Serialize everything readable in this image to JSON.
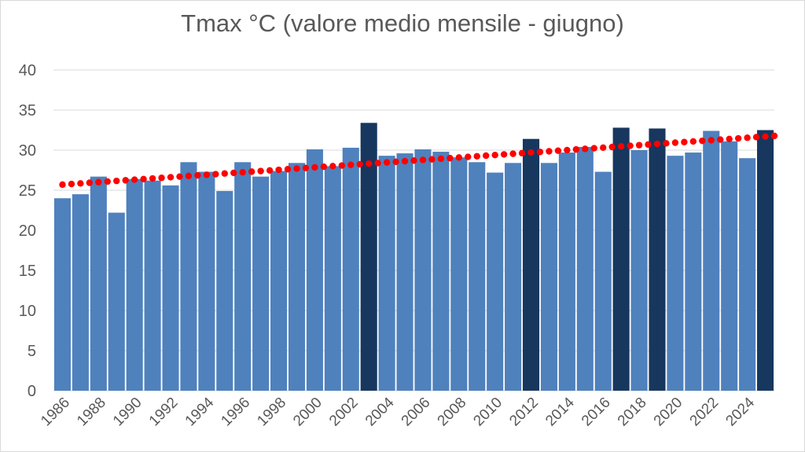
{
  "chart_data": {
    "type": "bar",
    "title": "Tmax °C (valore medio mensile - giugno)",
    "xlabel": "",
    "ylabel": "",
    "ylim": [
      0,
      40
    ],
    "yticks": [
      0,
      5,
      10,
      15,
      20,
      25,
      30,
      35,
      40
    ],
    "grid": true,
    "legend": "none",
    "categories": [
      "1986",
      "1987",
      "1988",
      "1989",
      "1990",
      "1991",
      "1992",
      "1993",
      "1994",
      "1995",
      "1996",
      "1997",
      "1998",
      "1999",
      "2000",
      "2001",
      "2002",
      "2003",
      "2004",
      "2005",
      "2006",
      "2007",
      "2008",
      "2009",
      "2010",
      "2011",
      "2012",
      "2013",
      "2014",
      "2015",
      "2016",
      "2017",
      "2018",
      "2019",
      "2020",
      "2021",
      "2022",
      "2023",
      "2024",
      "2025"
    ],
    "x_tick_labels": [
      "1986",
      "1988",
      "1990",
      "1992",
      "1994",
      "1996",
      "1998",
      "2000",
      "2002",
      "2004",
      "2006",
      "2008",
      "2010",
      "2012",
      "2014",
      "2016",
      "2018",
      "2020",
      "2022",
      "2024"
    ],
    "values": [
      24.0,
      24.5,
      26.7,
      22.2,
      26.4,
      26.2,
      25.6,
      28.5,
      27.3,
      24.9,
      28.5,
      26.7,
      27.4,
      28.4,
      30.1,
      28.0,
      30.3,
      33.4,
      29.3,
      29.6,
      30.1,
      29.8,
      29.1,
      28.5,
      27.2,
      28.4,
      31.4,
      28.4,
      29.7,
      30.4,
      27.3,
      32.8,
      30.0,
      32.7,
      29.3,
      29.7,
      32.4,
      31.1,
      29.0,
      32.5
    ],
    "highlighted": [
      "2003",
      "2012",
      "2017",
      "2019",
      "2025"
    ],
    "trendline": {
      "type": "linear",
      "start": 25.7,
      "end": 31.7
    },
    "colors": {
      "bar": "#4f81bd",
      "highlight": "#17375e",
      "trend": "#ff0000",
      "grid": "#d9d9d9",
      "axis_text": "#595959"
    }
  }
}
